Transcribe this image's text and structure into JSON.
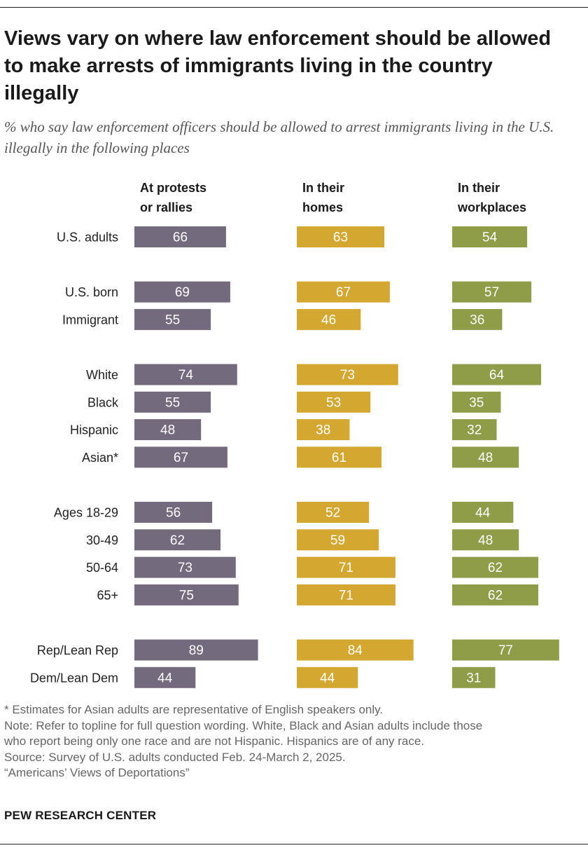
{
  "title": "Views vary on where law enforcement should be allowed to make arrests of immigrants living in the country illegally",
  "subtitle": "% who say law enforcement officers should be allowed to arrest immigrants living in the U.S. illegally in the following places",
  "chart_data": {
    "type": "bar",
    "orientation": "horizontal",
    "xlim": [
      0,
      100
    ],
    "categories": [
      "U.S. adults",
      "U.S. born",
      "Immigrant",
      "White",
      "Black",
      "Hispanic",
      "Asian*",
      "Ages 18-29",
      "30-49",
      "50-64",
      "65+",
      "Rep/Lean Rep",
      "Dem/Lean Dem"
    ],
    "groups": [
      [
        0
      ],
      [
        1,
        2
      ],
      [
        3,
        4,
        5,
        6
      ],
      [
        7,
        8,
        9,
        10
      ],
      [
        11,
        12
      ]
    ],
    "series": [
      {
        "name": [
          "At protests",
          "or rallies"
        ],
        "color": "#746a7e",
        "values": [
          66,
          69,
          55,
          74,
          55,
          48,
          67,
          56,
          62,
          73,
          75,
          89,
          44
        ]
      },
      {
        "name": [
          "In their",
          "homes"
        ],
        "color": "#d4a830",
        "values": [
          63,
          67,
          46,
          73,
          53,
          38,
          61,
          52,
          59,
          71,
          71,
          84,
          44
        ]
      },
      {
        "name": [
          "In their",
          "workplaces"
        ],
        "color": "#8f9d48",
        "values": [
          54,
          57,
          36,
          64,
          35,
          32,
          48,
          44,
          48,
          62,
          62,
          77,
          31
        ]
      }
    ]
  },
  "footer": {
    "lines": [
      "* Estimates for Asian adults are representative of English speakers only.",
      "Note: Refer to topline for full question wording. White, Black and Asian adults include those",
      "who report being only one race and are not Hispanic. Hispanics are of any race.",
      "Source: Survey of U.S. adults conducted Feb. 24-March 2, 2025.",
      "“Americans’ Views of Deportations”"
    ],
    "brand": "PEW RESEARCH CENTER"
  }
}
